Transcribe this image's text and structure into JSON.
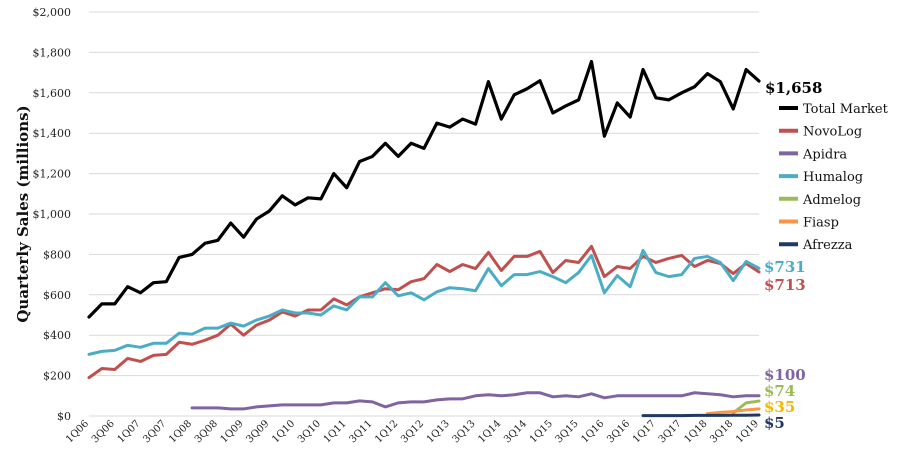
{
  "chart_data": {
    "type": "line",
    "title": "",
    "xlabel": "",
    "ylabel": "Quarterly Sales (millions)",
    "ylim": [
      0,
      2000
    ],
    "yticks": [
      0,
      200,
      400,
      600,
      800,
      1000,
      1200,
      1400,
      1600,
      1800,
      2000
    ],
    "ytick_labels": [
      "$0",
      "$200",
      "$400",
      "$600",
      "$800",
      "$1,000",
      "$1,200",
      "$1,400",
      "$1,600",
      "$1,800",
      "$2,000"
    ],
    "grid": "horizontal",
    "legend_position": "right",
    "categories": [
      "1Q06",
      "2Q06",
      "3Q06",
      "4Q06",
      "1Q07",
      "2Q07",
      "3Q07",
      "4Q07",
      "1Q08",
      "2Q08",
      "3Q08",
      "4Q08",
      "1Q09",
      "2Q09",
      "3Q09",
      "4Q09",
      "1Q10",
      "2Q10",
      "3Q10",
      "4Q10",
      "1Q11",
      "2Q11",
      "3Q11",
      "4Q11",
      "1Q12",
      "2Q12",
      "3Q12",
      "4Q12",
      "1Q13",
      "2Q13",
      "3Q13",
      "4Q13",
      "1Q14",
      "2Q14",
      "3Q14",
      "4Q14",
      "1Q15",
      "2Q15",
      "3Q15",
      "4Q15",
      "1Q16",
      "2Q16",
      "3Q16",
      "4Q16",
      "1Q17",
      "2Q17",
      "3Q17",
      "4Q17",
      "1Q18",
      "2Q18",
      "3Q18",
      "4Q18",
      "1Q19"
    ],
    "x_tick_labels": [
      "1Q06",
      "3Q06",
      "1Q07",
      "3Q07",
      "1Q08",
      "3Q08",
      "1Q09",
      "3Q09",
      "1Q10",
      "3Q10",
      "1Q11",
      "3Q11",
      "1Q12",
      "3Q12",
      "1Q13",
      "3Q13",
      "1Q14",
      "3Q14",
      "1Q15",
      "3Q15",
      "1Q16",
      "3Q16",
      "1Q17",
      "3Q17",
      "1Q18",
      "3Q18",
      "1Q19"
    ],
    "series": [
      {
        "name": "Total Market",
        "color": "#000000",
        "values": [
          490,
          555,
          555,
          640,
          610,
          660,
          665,
          785,
          800,
          855,
          870,
          955,
          885,
          975,
          1015,
          1090,
          1045,
          1080,
          1075,
          1200,
          1130,
          1260,
          1285,
          1350,
          1285,
          1350,
          1325,
          1450,
          1430,
          1470,
          1445,
          1655,
          1470,
          1590,
          1620,
          1660,
          1500,
          1535,
          1565,
          1755,
          1385,
          1550,
          1480,
          1715,
          1575,
          1565,
          1600,
          1630,
          1695,
          1655,
          1520,
          1715,
          1658
        ],
        "end_label": "$1,658"
      },
      {
        "name": "NovoLog",
        "color": "#c0504d",
        "values": [
          190,
          235,
          230,
          285,
          270,
          300,
          305,
          365,
          355,
          375,
          400,
          455,
          400,
          450,
          475,
          515,
          495,
          525,
          525,
          580,
          550,
          590,
          610,
          630,
          625,
          665,
          680,
          750,
          715,
          750,
          730,
          810,
          720,
          790,
          790,
          815,
          710,
          770,
          760,
          840,
          690,
          740,
          730,
          790,
          760,
          780,
          795,
          740,
          770,
          755,
          705,
          755,
          713
        ],
        "end_label": "$713"
      },
      {
        "name": "Apidra",
        "color": "#8064a2",
        "values": [
          null,
          null,
          null,
          null,
          null,
          null,
          null,
          null,
          40,
          40,
          40,
          35,
          35,
          45,
          50,
          55,
          55,
          55,
          55,
          65,
          65,
          75,
          70,
          45,
          65,
          70,
          70,
          80,
          85,
          85,
          100,
          105,
          100,
          105,
          115,
          115,
          95,
          100,
          95,
          110,
          90,
          100,
          100,
          100,
          100,
          100,
          100,
          115,
          110,
          105,
          95,
          100,
          100
        ],
        "end_label": "$100"
      },
      {
        "name": "Humalog",
        "color": "#4bacc6",
        "values": [
          305,
          320,
          325,
          350,
          340,
          360,
          360,
          410,
          405,
          435,
          435,
          460,
          445,
          475,
          495,
          525,
          510,
          510,
          500,
          545,
          525,
          590,
          590,
          660,
          595,
          610,
          575,
          615,
          635,
          630,
          620,
          730,
          645,
          700,
          700,
          715,
          690,
          660,
          710,
          795,
          610,
          695,
          640,
          820,
          710,
          690,
          700,
          780,
          790,
          760,
          670,
          765,
          731
        ],
        "end_label": "$731"
      },
      {
        "name": "Admelog",
        "color": "#9bbb59",
        "values": [
          null,
          null,
          null,
          null,
          null,
          null,
          null,
          null,
          null,
          null,
          null,
          null,
          null,
          null,
          null,
          null,
          null,
          null,
          null,
          null,
          null,
          null,
          null,
          null,
          null,
          null,
          null,
          null,
          null,
          null,
          null,
          null,
          null,
          null,
          null,
          null,
          null,
          null,
          null,
          null,
          null,
          null,
          null,
          null,
          null,
          null,
          null,
          null,
          null,
          null,
          15,
          65,
          74
        ],
        "end_label": "$74"
      },
      {
        "name": "Fiasp",
        "color": "#f79646",
        "values": [
          null,
          null,
          null,
          null,
          null,
          null,
          null,
          null,
          null,
          null,
          null,
          null,
          null,
          null,
          null,
          null,
          null,
          null,
          null,
          null,
          null,
          null,
          null,
          null,
          null,
          null,
          null,
          null,
          null,
          null,
          null,
          null,
          null,
          null,
          null,
          null,
          null,
          null,
          null,
          null,
          null,
          null,
          null,
          null,
          null,
          null,
          null,
          null,
          12,
          18,
          22,
          30,
          35
        ],
        "end_label": "$35"
      },
      {
        "name": "Afrezza",
        "color": "#1f3864",
        "values": [
          null,
          null,
          null,
          null,
          null,
          null,
          null,
          null,
          null,
          null,
          null,
          null,
          null,
          null,
          null,
          null,
          null,
          null,
          null,
          null,
          null,
          null,
          null,
          null,
          null,
          null,
          null,
          null,
          null,
          null,
          null,
          null,
          null,
          null,
          null,
          null,
          null,
          null,
          null,
          null,
          null,
          null,
          null,
          2,
          2,
          2,
          2,
          3,
          3,
          3,
          4,
          4,
          5
        ],
        "end_label": "$5"
      }
    ],
    "end_label_colors": {
      "Total Market": "#000000",
      "NovoLog": "#c0504d",
      "Apidra": "#8064a2",
      "Humalog": "#4bacc6",
      "Admelog": "#9bbb59",
      "Fiasp": "#f5b800",
      "Afrezza": "#1f3864"
    }
  }
}
